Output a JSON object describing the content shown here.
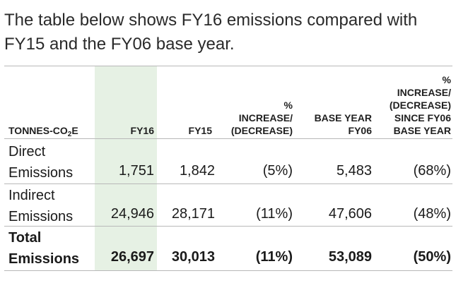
{
  "intro": {
    "line1": "The table below shows FY16 emissions compared with",
    "line2": "FY15 and the FY06 base year."
  },
  "header": {
    "unit_prefix": "TONNES-CO",
    "unit_sub": "2",
    "unit_suffix": "E",
    "fy16": "FY16",
    "fy15": "FY15",
    "increase": [
      "%",
      "INCREASE/",
      "(DECREASE)"
    ],
    "base_year": [
      "BASE YEAR",
      "FY06"
    ],
    "since_base": [
      "%",
      "INCREASE/",
      "(DECREASE)",
      "SINCE FY06",
      "BASE YEAR"
    ]
  },
  "rows": [
    {
      "label": [
        "Direct",
        "Emissions"
      ],
      "fy16": "1,751",
      "fy15": "1,842",
      "increase": "(5%)",
      "base_year": "5,483",
      "since_base": "(68%)"
    },
    {
      "label": [
        "Indirect",
        "Emissions"
      ],
      "fy16": "24,946",
      "fy15": "28,171",
      "increase": "(11%)",
      "base_year": "47,606",
      "since_base": "(48%)"
    },
    {
      "label": [
        "Total",
        "Emissions"
      ],
      "fy16": "26,697",
      "fy15": "30,013",
      "increase": "(11%)",
      "base_year": "53,089",
      "since_base": "(50%)"
    }
  ],
  "colors": {
    "fy16_highlight": "#e6f1e4",
    "rule": "#b8b8b8"
  }
}
